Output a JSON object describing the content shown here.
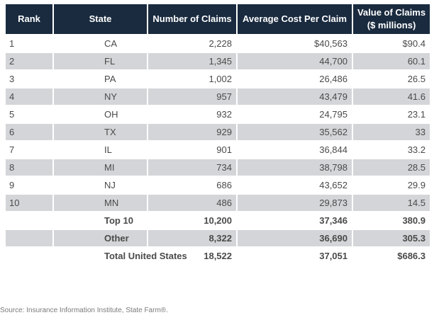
{
  "table": {
    "headers": [
      "Rank",
      "State",
      "Number of Claims",
      "Average Cost Per Claim",
      "Value of Claims"
    ],
    "header_sub": "($ millions)",
    "rows": [
      {
        "rank": "1",
        "state": "CA",
        "claims": "2,228",
        "avg": "$40,563",
        "value": "$90.4"
      },
      {
        "rank": "2",
        "state": "FL",
        "claims": "1,345",
        "avg": "44,700",
        "value": "60.1"
      },
      {
        "rank": "3",
        "state": "PA",
        "claims": "1,002",
        "avg": "26,486",
        "value": "26.5"
      },
      {
        "rank": "4",
        "state": "NY",
        "claims": "957",
        "avg": "43,479",
        "value": "41.6"
      },
      {
        "rank": "5",
        "state": "OH",
        "claims": "932",
        "avg": "24,795",
        "value": "23.1"
      },
      {
        "rank": "6",
        "state": "TX",
        "claims": "929",
        "avg": "35,562",
        "value": "33"
      },
      {
        "rank": "7",
        "state": "IL",
        "claims": "901",
        "avg": "36,844",
        "value": "33.2"
      },
      {
        "rank": "8",
        "state": "MI",
        "claims": "734",
        "avg": "38,798",
        "value": "28.5"
      },
      {
        "rank": "9",
        "state": "NJ",
        "claims": "686",
        "avg": "43,652",
        "value": "29.9"
      },
      {
        "rank": "10",
        "state": "MN",
        "claims": "486",
        "avg": "29,873",
        "value": "14.5"
      }
    ],
    "summary": [
      {
        "label": "Top 10",
        "claims": "10,200",
        "avg": "37,346",
        "value": "380.9"
      },
      {
        "label": "Other",
        "claims": "8,322",
        "avg": "36,690",
        "value": "305.3"
      },
      {
        "label": "Total United States",
        "claims": "18,522",
        "avg": "37,051",
        "value": "$686.3"
      }
    ]
  },
  "footnote": "Source: Insurance Information Institute, State Farm®.",
  "colors": {
    "header_bg": "#1a2b3f",
    "stripe_bg": "#d3d5d8",
    "text": "#4a4a4a"
  }
}
